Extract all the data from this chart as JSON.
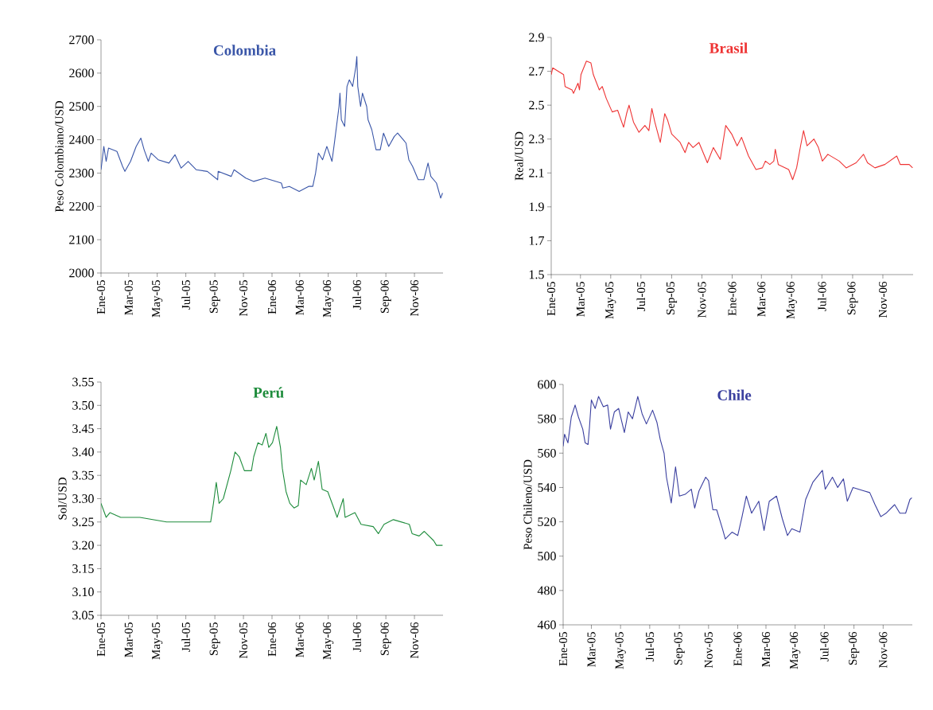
{
  "chart_data": [
    {
      "type": "line",
      "title": "Colombia",
      "ylabel": "Peso Colombiano/USD",
      "color": "#3a56a8",
      "xlim": [
        "2005-01-01",
        "2007-01-01"
      ],
      "ylim": [
        2000,
        2700
      ],
      "yticks": [
        2000,
        2100,
        2200,
        2300,
        2400,
        2500,
        2600,
        2700
      ],
      "xticks": [
        {
          "value": "2005-01-01",
          "label": "Ene-05"
        },
        {
          "value": "2005-03-01",
          "label": "Mar-05"
        },
        {
          "value": "2005-05-01",
          "label": "May-05"
        },
        {
          "value": "2005-07-01",
          "label": "Jul-05"
        },
        {
          "value": "2005-09-01",
          "label": "Sep-05"
        },
        {
          "value": "2005-11-01",
          "label": "Nov-05"
        },
        {
          "value": "2006-01-01",
          "label": "Ene-06"
        },
        {
          "value": "2006-03-01",
          "label": "Mar-06"
        },
        {
          "value": "2006-05-01",
          "label": "May-06"
        },
        {
          "value": "2006-07-01",
          "label": "Jul-06"
        },
        {
          "value": "2006-09-01",
          "label": "Sep-06"
        },
        {
          "value": "2006-11-01",
          "label": "Nov-06"
        }
      ],
      "x": [
        "2005-01-01",
        "2005-01-07",
        "2005-01-12",
        "2005-01-17",
        "2005-02-04",
        "2005-02-16",
        "2005-02-21",
        "2005-03-05",
        "2005-03-17",
        "2005-03-27",
        "2005-04-03",
        "2005-04-12",
        "2005-04-18",
        "2005-05-03",
        "2005-05-26",
        "2005-06-08",
        "2005-06-21",
        "2005-07-06",
        "2005-07-23",
        "2005-08-16",
        "2005-09-07",
        "2005-09-08",
        "2005-10-06",
        "2005-10-12",
        "2005-11-06",
        "2005-11-23",
        "2005-12-17",
        "2006-01-21",
        "2006-01-24",
        "2006-02-07",
        "2006-02-28",
        "2006-03-20",
        "2006-03-29",
        "2006-04-04",
        "2006-04-10",
        "2006-04-19",
        "2006-04-28",
        "2006-05-09",
        "2006-05-15",
        "2006-05-24",
        "2006-05-26",
        "2006-05-29",
        "2006-06-05",
        "2006-06-10",
        "2006-06-15",
        "2006-06-22",
        "2006-06-29",
        "2006-07-01",
        "2006-07-03",
        "2006-07-09",
        "2006-07-13",
        "2006-07-22",
        "2006-07-25",
        "2006-08-02",
        "2006-08-11",
        "2006-08-20",
        "2006-08-27",
        "2006-09-07",
        "2006-09-19",
        "2006-09-26",
        "2006-10-14",
        "2006-10-20",
        "2006-10-28",
        "2006-11-09",
        "2006-11-21",
        "2006-11-30",
        "2006-12-06",
        "2006-12-18",
        "2006-12-27",
        "2006-12-31"
      ],
      "values": [
        2310,
        2380,
        2335,
        2375,
        2365,
        2320,
        2305,
        2335,
        2380,
        2405,
        2370,
        2335,
        2360,
        2340,
        2330,
        2355,
        2315,
        2335,
        2310,
        2305,
        2280,
        2305,
        2290,
        2310,
        2285,
        2275,
        2285,
        2270,
        2255,
        2260,
        2245,
        2260,
        2260,
        2300,
        2360,
        2340,
        2380,
        2335,
        2400,
        2500,
        2540,
        2460,
        2440,
        2560,
        2580,
        2560,
        2620,
        2650,
        2560,
        2500,
        2540,
        2500,
        2460,
        2430,
        2370,
        2370,
        2420,
        2380,
        2410,
        2420,
        2390,
        2340,
        2320,
        2280,
        2280,
        2330,
        2290,
        2270,
        2225,
        2240
      ]
    },
    {
      "type": "line",
      "title": "Brasil",
      "ylabel": "Real/USD",
      "color": "#ee3333",
      "xlim": [
        "2005-01-01",
        "2007-01-01"
      ],
      "ylim": [
        1.5,
        2.9
      ],
      "yticks": [
        1.5,
        1.7,
        1.9,
        2.1,
        2.3,
        2.5,
        2.7,
        2.9
      ],
      "xticks": [
        {
          "value": "2005-01-01",
          "label": "Ene-05"
        },
        {
          "value": "2005-03-01",
          "label": "Mar-05"
        },
        {
          "value": "2005-05-01",
          "label": "May-05"
        },
        {
          "value": "2005-07-01",
          "label": "Jul-05"
        },
        {
          "value": "2005-09-01",
          "label": "Sep-05"
        },
        {
          "value": "2005-11-01",
          "label": "Nov-05"
        },
        {
          "value": "2006-01-01",
          "label": "Ene-06"
        },
        {
          "value": "2006-03-01",
          "label": "Mar-06"
        },
        {
          "value": "2006-05-01",
          "label": "May-06"
        },
        {
          "value": "2006-07-01",
          "label": "Jul-06"
        },
        {
          "value": "2006-09-01",
          "label": "Sep-06"
        },
        {
          "value": "2006-11-01",
          "label": "Nov-06"
        }
      ],
      "x": [
        "2005-01-01",
        "2005-01-04",
        "2005-01-26",
        "2005-01-29",
        "2005-02-12",
        "2005-02-15",
        "2005-02-24",
        "2005-02-27",
        "2005-03-02",
        "2005-03-13",
        "2005-03-22",
        "2005-03-27",
        "2005-04-08",
        "2005-04-14",
        "2005-04-22",
        "2005-05-04",
        "2005-05-15",
        "2005-05-27",
        "2005-06-02",
        "2005-06-07",
        "2005-06-16",
        "2005-06-27",
        "2005-07-09",
        "2005-07-17",
        "2005-07-23",
        "2005-07-29",
        "2005-08-09",
        "2005-08-18",
        "2005-08-24",
        "2005-09-01",
        "2005-09-18",
        "2005-09-28",
        "2005-10-05",
        "2005-10-14",
        "2005-10-26",
        "2005-11-12",
        "2005-11-24",
        "2005-12-08",
        "2005-12-19",
        "2005-12-31",
        "2006-01-11",
        "2006-01-20",
        "2006-02-03",
        "2006-02-18",
        "2006-03-03",
        "2006-03-09",
        "2006-03-18",
        "2006-03-26",
        "2006-03-29",
        "2006-04-04",
        "2006-04-25",
        "2006-05-03",
        "2006-05-11",
        "2006-05-19",
        "2006-05-25",
        "2006-06-01",
        "2006-06-15",
        "2006-06-24",
        "2006-07-02",
        "2006-07-13",
        "2006-08-05",
        "2006-08-19",
        "2006-09-08",
        "2006-09-23",
        "2006-10-01",
        "2006-10-16",
        "2006-11-05",
        "2006-11-29",
        "2006-12-06",
        "2006-12-24",
        "2006-12-31"
      ],
      "values": [
        2.68,
        2.72,
        2.68,
        2.61,
        2.59,
        2.57,
        2.63,
        2.59,
        2.68,
        2.76,
        2.75,
        2.68,
        2.59,
        2.61,
        2.54,
        2.46,
        2.47,
        2.37,
        2.45,
        2.5,
        2.4,
        2.34,
        2.38,
        2.35,
        2.48,
        2.4,
        2.28,
        2.45,
        2.41,
        2.33,
        2.28,
        2.22,
        2.28,
        2.25,
        2.28,
        2.16,
        2.25,
        2.18,
        2.38,
        2.33,
        2.26,
        2.31,
        2.2,
        2.12,
        2.13,
        2.17,
        2.15,
        2.17,
        2.24,
        2.15,
        2.12,
        2.06,
        2.13,
        2.26,
        2.35,
        2.26,
        2.3,
        2.25,
        2.17,
        2.21,
        2.17,
        2.13,
        2.16,
        2.21,
        2.16,
        2.13,
        2.15,
        2.2,
        2.15,
        2.15,
        2.13
      ]
    },
    {
      "type": "line",
      "title": "Perú",
      "ylabel": "Sol/USD",
      "color": "#1e8c3c",
      "xlim": [
        "2005-01-01",
        "2007-01-01"
      ],
      "ylim": [
        3.05,
        3.55
      ],
      "yticks": [
        3.05,
        {
          "value": 3.1,
          "label": "3.10"
        },
        3.15,
        {
          "value": 3.2,
          "label": "3.20"
        },
        3.25,
        {
          "value": 3.3,
          "label": "3.30"
        },
        3.35,
        {
          "value": 3.4,
          "label": "3.40"
        },
        3.45,
        {
          "value": 3.5,
          "label": "3.50"
        },
        3.55
      ],
      "xticks": [
        {
          "value": "2005-01-01",
          "label": "Ene-05"
        },
        {
          "value": "2005-03-01",
          "label": "Mar-05"
        },
        {
          "value": "2005-05-01",
          "label": "May-05"
        },
        {
          "value": "2005-07-01",
          "label": "Jul-05"
        },
        {
          "value": "2005-09-01",
          "label": "Sep-05"
        },
        {
          "value": "2005-11-01",
          "label": "Nov-05"
        },
        {
          "value": "2006-01-01",
          "label": "Ene-06"
        },
        {
          "value": "2006-03-01",
          "label": "Mar-06"
        },
        {
          "value": "2006-05-01",
          "label": "May-06"
        },
        {
          "value": "2006-07-01",
          "label": "Jul-06"
        },
        {
          "value": "2006-09-01",
          "label": "Sep-06"
        },
        {
          "value": "2006-11-01",
          "label": "Nov-06"
        }
      ],
      "x": [
        "2005-01-01",
        "2005-01-12",
        "2005-01-20",
        "2005-02-12",
        "2005-03-25",
        "2005-05-21",
        "2005-07-17",
        "2005-08-23",
        "2005-08-29",
        "2005-09-04",
        "2005-09-10",
        "2005-09-19",
        "2005-09-27",
        "2005-10-05",
        "2005-10-14",
        "2005-10-23",
        "2005-11-03",
        "2005-11-18",
        "2005-11-23",
        "2005-12-02",
        "2005-12-11",
        "2005-12-19",
        "2005-12-25",
        "2006-01-02",
        "2006-01-11",
        "2006-01-19",
        "2006-01-23",
        "2006-01-31",
        "2006-02-08",
        "2006-02-17",
        "2006-02-26",
        "2006-03-03",
        "2006-03-15",
        "2006-03-26",
        "2006-04-01",
        "2006-04-10",
        "2006-04-18",
        "2006-04-30",
        "2006-05-11",
        "2006-05-20",
        "2006-06-02",
        "2006-06-06",
        "2006-06-27",
        "2006-07-10",
        "2006-08-05",
        "2006-08-16",
        "2006-08-28",
        "2006-09-17",
        "2006-10-21",
        "2006-10-27",
        "2006-11-11",
        "2006-11-22",
        "2006-12-12",
        "2006-12-18",
        "2006-12-31"
      ],
      "values": [
        3.29,
        3.26,
        3.27,
        3.26,
        3.26,
        3.25,
        3.25,
        3.25,
        3.29,
        3.335,
        3.29,
        3.3,
        3.33,
        3.36,
        3.4,
        3.39,
        3.36,
        3.36,
        3.39,
        3.42,
        3.415,
        3.44,
        3.41,
        3.42,
        3.455,
        3.41,
        3.365,
        3.315,
        3.29,
        3.28,
        3.285,
        3.34,
        3.33,
        3.365,
        3.34,
        3.38,
        3.32,
        3.315,
        3.285,
        3.26,
        3.3,
        3.26,
        3.27,
        3.245,
        3.24,
        3.225,
        3.245,
        3.255,
        3.245,
        3.225,
        3.22,
        3.23,
        3.21,
        3.2,
        3.2
      ]
    },
    {
      "type": "line",
      "title": "Chile",
      "ylabel": "Peso Chileno/USD",
      "color": "#3a3f9f",
      "xlim": [
        "2005-01-01",
        "2007-01-01"
      ],
      "ylim": [
        460,
        600
      ],
      "yticks": [
        460,
        480,
        500,
        520,
        540,
        560,
        580,
        600
      ],
      "xticks": [
        {
          "value": "2005-01-01",
          "label": "Ene-05"
        },
        {
          "value": "2005-03-01",
          "label": "Mar-05"
        },
        {
          "value": "2005-05-01",
          "label": "May-05"
        },
        {
          "value": "2005-07-01",
          "label": "Jul-05"
        },
        {
          "value": "2005-09-01",
          "label": "Sep-05"
        },
        {
          "value": "2005-11-01",
          "label": "Nov-05"
        },
        {
          "value": "2006-01-01",
          "label": "Ene-06"
        },
        {
          "value": "2006-03-01",
          "label": "Mar-06"
        },
        {
          "value": "2006-05-01",
          "label": "May-06"
        },
        {
          "value": "2006-07-01",
          "label": "Jul-06"
        },
        {
          "value": "2006-09-01",
          "label": "Sep-06"
        },
        {
          "value": "2006-11-01",
          "label": "Nov-06"
        }
      ],
      "x": [
        "2005-01-01",
        "2005-01-04",
        "2005-01-11",
        "2005-01-18",
        "2005-01-26",
        "2005-02-02",
        "2005-02-11",
        "2005-02-16",
        "2005-02-22",
        "2005-02-25",
        "2005-03-01",
        "2005-03-09",
        "2005-03-16",
        "2005-03-26",
        "2005-04-04",
        "2005-04-10",
        "2005-04-18",
        "2005-04-27",
        "2005-05-09",
        "2005-05-17",
        "2005-05-26",
        "2005-06-06",
        "2005-06-15",
        "2005-06-24",
        "2005-07-07",
        "2005-07-16",
        "2005-07-23",
        "2005-07-31",
        "2005-08-05",
        "2005-08-15",
        "2005-08-24",
        "2005-09-01",
        "2005-09-13",
        "2005-09-26",
        "2005-10-03",
        "2005-10-12",
        "2005-10-26",
        "2005-11-01",
        "2005-11-10",
        "2005-11-18",
        "2005-11-30",
        "2005-12-06",
        "2005-12-20",
        "2006-01-01",
        "2006-01-10",
        "2006-01-19",
        "2006-01-30",
        "2006-02-14",
        "2006-02-25",
        "2006-03-08",
        "2006-03-23",
        "2006-04-04",
        "2006-04-15",
        "2006-04-24",
        "2006-05-11",
        "2006-05-23",
        "2006-06-07",
        "2006-06-27",
        "2006-07-03",
        "2006-07-18",
        "2006-07-29",
        "2006-08-10",
        "2006-08-18",
        "2006-08-30",
        "2006-09-22",
        "2006-10-04",
        "2006-10-15",
        "2006-10-27",
        "2006-11-07",
        "2006-11-25",
        "2006-12-06",
        "2006-12-18",
        "2006-12-27",
        "2006-12-31"
      ],
      "values": [
        564,
        571,
        566,
        581,
        588,
        581,
        574,
        566,
        565,
        575,
        591,
        586,
        593,
        587,
        588,
        574,
        584,
        586,
        572,
        584,
        580,
        593,
        583,
        577,
        585,
        578,
        568,
        560,
        546,
        531,
        552,
        535,
        536,
        539,
        528,
        538,
        546,
        544,
        527,
        527,
        516,
        510,
        514,
        512,
        523,
        535,
        525,
        532,
        515,
        532,
        535,
        522,
        512,
        516,
        514,
        533,
        543,
        550,
        539,
        546,
        540,
        545,
        532,
        540,
        538,
        537,
        530,
        523,
        525,
        530,
        525,
        525,
        533,
        534
      ]
    }
  ]
}
